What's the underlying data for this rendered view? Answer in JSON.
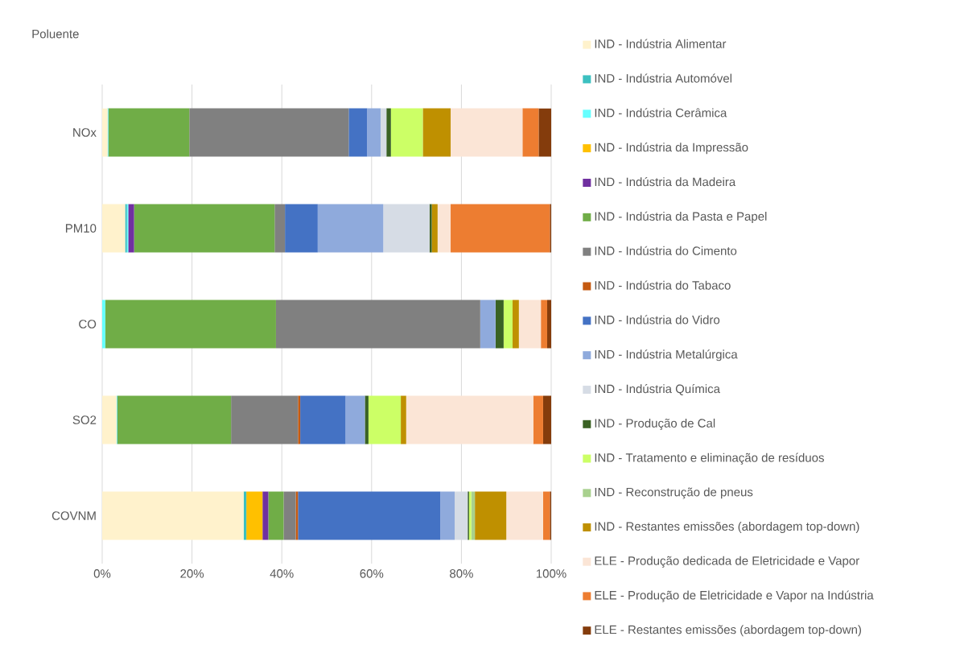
{
  "chart_data": {
    "type": "bar",
    "orientation": "horizontal",
    "stacked": true,
    "ylabel": "Poluente",
    "categories": [
      "NOx",
      "PM10",
      "CO",
      "SO2",
      "COVNM"
    ],
    "series": [
      {
        "name": "IND - Indústria Alimentar",
        "color": "#fff2cc",
        "values": [
          1.2,
          5.1,
          0,
          3.2,
          31.5
        ]
      },
      {
        "name": "IND - Indústria Automóvel",
        "color": "#3cc0c0",
        "values": [
          0.1,
          0.4,
          0,
          0.1,
          0.6
        ]
      },
      {
        "name": "IND - Indústria Cerâmica",
        "color": "#66ffff",
        "values": [
          0.1,
          0.3,
          0.7,
          0.1,
          0
        ]
      },
      {
        "name": "IND - Indústria da Impressão",
        "color": "#ffc000",
        "values": [
          0,
          0,
          0,
          0,
          3.6
        ]
      },
      {
        "name": "IND - Indústria da Madeira",
        "color": "#7030a0",
        "values": [
          0,
          1.3,
          0,
          0,
          1.3
        ]
      },
      {
        "name": "IND - Indústria da Pasta e Papel",
        "color": "#70ad47",
        "values": [
          18.0,
          31.3,
          38.0,
          25.3,
          3.4
        ]
      },
      {
        "name": "IND - Indústria do Cimento",
        "color": "#808080",
        "values": [
          35.5,
          2.3,
          45.5,
          14.9,
          2.7
        ]
      },
      {
        "name": "IND - Indústria do Tabaco",
        "color": "#c55a11",
        "values": [
          0,
          0,
          0,
          0.5,
          0.5
        ]
      },
      {
        "name": "IND - Indústria do Vidro",
        "color": "#4472c4",
        "values": [
          4.1,
          7.3,
          0,
          10.1,
          31.7
        ]
      },
      {
        "name": "IND - Indústria Metalúrgica",
        "color": "#8faadc",
        "values": [
          3.0,
          14.6,
          3.4,
          4.3,
          3.2
        ]
      },
      {
        "name": "IND - Indústria Química",
        "color": "#d6dce5",
        "values": [
          1.3,
          10.3,
          0,
          0,
          2.9
        ]
      },
      {
        "name": "IND - Produção de Cal",
        "color": "#3a6224",
        "values": [
          1.0,
          0.5,
          1.8,
          0.8,
          0.3
        ]
      },
      {
        "name": "IND - Tratamento e eliminação de resíduos",
        "color": "#ccff66",
        "values": [
          7.1,
          0,
          2.0,
          7.2,
          0.5
        ]
      },
      {
        "name": "IND - Reconstrução de pneus",
        "color": "#a9d18e",
        "values": [
          0,
          0,
          0,
          0,
          0.8
        ]
      },
      {
        "name": "IND - Restantes emissões (abordagem top-down)",
        "color": "#bf9000",
        "values": [
          6.2,
          1.3,
          1.4,
          1.2,
          7.0
        ]
      },
      {
        "name": "ELE - Produção dedicada de Eletricidade e Vapor",
        "color": "#fbe5d6",
        "values": [
          16.0,
          2.9,
          4.9,
          28.3,
          8.2
        ]
      },
      {
        "name": "ELE - Produção de Eletricidade e Vapor na Indústria",
        "color": "#ed7d31",
        "values": [
          3.6,
          22.1,
          1.4,
          2.2,
          1.5
        ]
      },
      {
        "name": "ELE - Restantes emissões (abordagem top-down)",
        "color": "#843c0c",
        "values": [
          2.8,
          0.3,
          0.9,
          1.8,
          0.3
        ]
      }
    ],
    "xlim": [
      0,
      100
    ],
    "xticks": [
      {
        "value": 0,
        "label": "0%"
      },
      {
        "value": 20,
        "label": "20%"
      },
      {
        "value": 40,
        "label": "40%"
      },
      {
        "value": 60,
        "label": "60%"
      },
      {
        "value": 80,
        "label": "80%"
      },
      {
        "value": 100,
        "label": "100%"
      }
    ],
    "grid": "x",
    "legend": "right"
  }
}
